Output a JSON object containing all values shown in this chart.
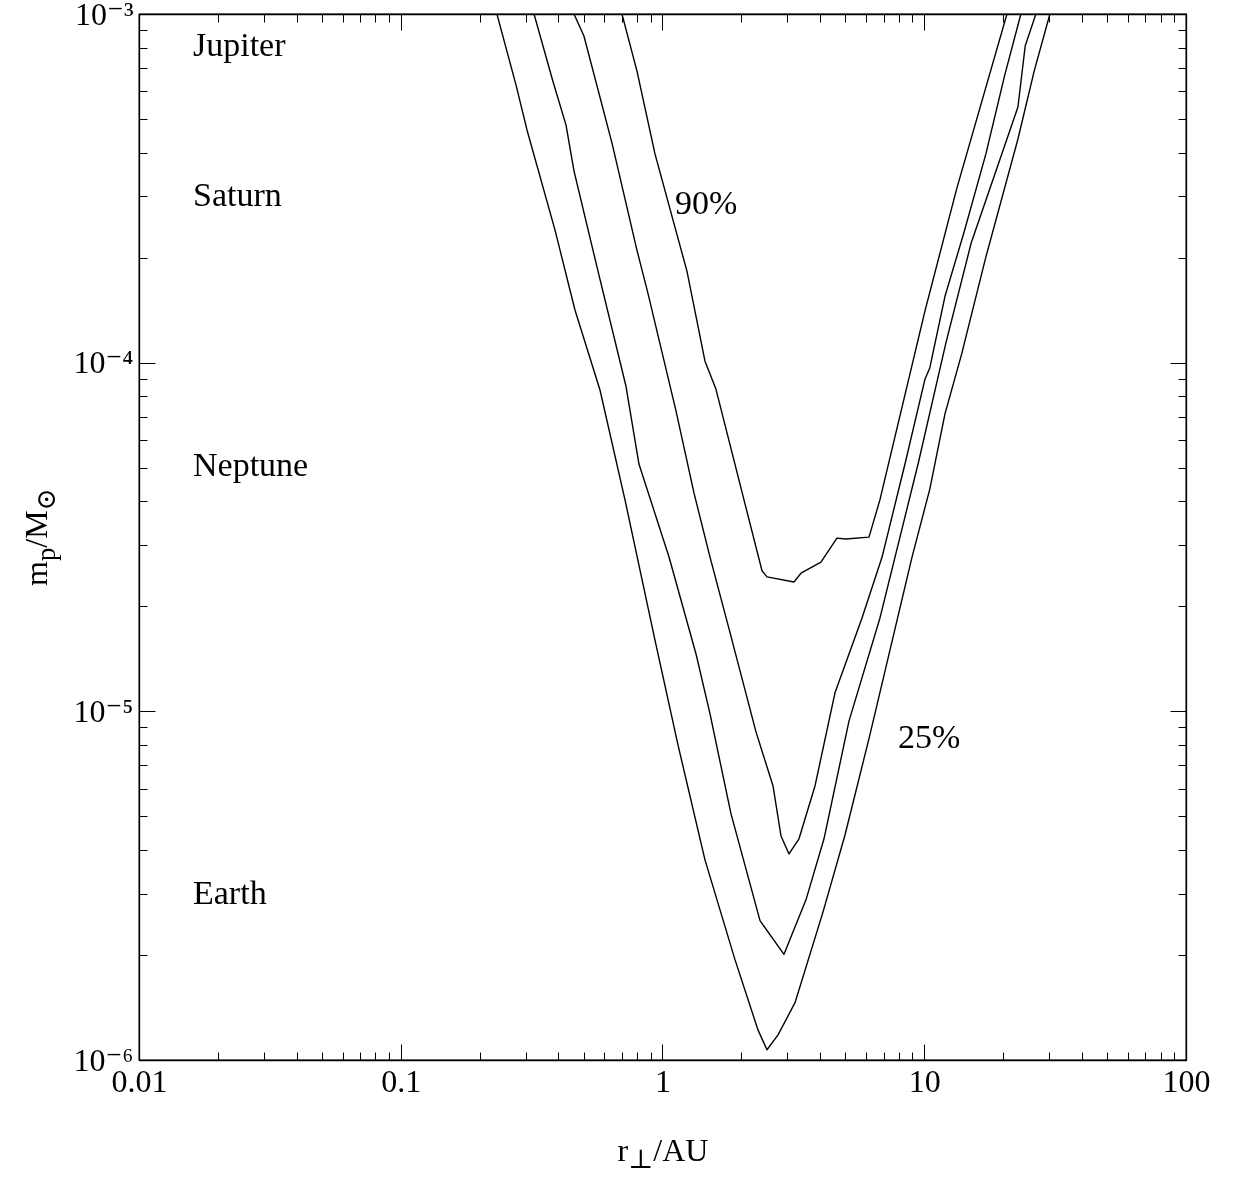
{
  "chart_data": {
    "type": "line",
    "xlabel": "r$_{⊥}$/AU",
    "ylabel": "m$_{p}$/M$_{⊙}$",
    "log": "xy",
    "xlim": [
      0.01,
      100
    ],
    "ylim": [
      1e-06,
      0.001
    ],
    "xticks": [
      0.01,
      {
        "value": 0.02,
        "label": null
      },
      {
        "value": 0.03,
        "label": null
      },
      {
        "value": 0.04,
        "label": null
      },
      {
        "value": 0.05,
        "label": null
      },
      {
        "value": 0.06,
        "label": null
      },
      {
        "value": 0.07,
        "label": null
      },
      {
        "value": 0.08,
        "label": null
      },
      {
        "value": 0.09,
        "label": null
      },
      0.1,
      {
        "value": 0.2,
        "label": null
      },
      {
        "value": 0.3,
        "label": null
      },
      {
        "value": 0.4,
        "label": null
      },
      {
        "value": 0.5,
        "label": null
      },
      {
        "value": 0.6,
        "label": null
      },
      {
        "value": 0.7,
        "label": null
      },
      {
        "value": 0.8,
        "label": null
      },
      {
        "value": 0.9,
        "label": null
      },
      1,
      {
        "value": 2,
        "label": null
      },
      {
        "value": 3,
        "label": null
      },
      {
        "value": 4,
        "label": null
      },
      {
        "value": 5,
        "label": null
      },
      {
        "value": 6,
        "label": null
      },
      {
        "value": 7,
        "label": null
      },
      {
        "value": 8,
        "label": null
      },
      {
        "value": 9,
        "label": null
      },
      10,
      {
        "value": 20,
        "label": null
      },
      {
        "value": 30,
        "label": null
      },
      {
        "value": 40,
        "label": null
      },
      {
        "value": 50,
        "label": null
      },
      {
        "value": 60,
        "label": null
      },
      {
        "value": 70,
        "label": null
      },
      {
        "value": 80,
        "label": null
      },
      {
        "value": 90,
        "label": null
      },
      100
    ],
    "yticks": [
      {
        "value": 1e-06,
        "label": "10⁻⁶"
      },
      {
        "value": 2e-06,
        "label": null
      },
      {
        "value": 3e-06,
        "label": null
      },
      {
        "value": 4e-06,
        "label": null
      },
      {
        "value": 5e-06,
        "label": null
      },
      {
        "value": 6e-06,
        "label": null
      },
      {
        "value": 7e-06,
        "label": null
      },
      {
        "value": 8e-06,
        "label": null
      },
      {
        "value": 9e-06,
        "label": null
      },
      {
        "value": 1e-05,
        "label": "10⁻⁵"
      },
      {
        "value": 2e-05,
        "label": null
      },
      {
        "value": 3e-05,
        "label": null
      },
      {
        "value": 4e-05,
        "label": null
      },
      {
        "value": 5e-05,
        "label": null
      },
      {
        "value": 6e-05,
        "label": null
      },
      {
        "value": 7e-05,
        "label": null
      },
      {
        "value": 8e-05,
        "label": null
      },
      {
        "value": 9e-05,
        "label": null
      },
      {
        "value": 0.0001,
        "label": "10⁻⁴"
      },
      {
        "value": 0.0002,
        "label": null
      },
      {
        "value": 0.0003,
        "label": null
      },
      {
        "value": 0.0004,
        "label": null
      },
      {
        "value": 0.0005,
        "label": null
      },
      {
        "value": 0.0006,
        "label": null
      },
      {
        "value": 0.0007,
        "label": null
      },
      {
        "value": 0.0008,
        "label": null
      },
      {
        "value": 0.0009,
        "label": null
      },
      {
        "value": 0.001,
        "label": "10⁻³"
      }
    ],
    "series": [
      {
        "color": "#000000",
        "x": [
          0.7,
          0.799,
          0.936,
          1.24,
          1.453,
          1.6,
          2.048,
          2.4,
          2.507,
          3.18,
          3.38,
          4.03,
          4.64,
          5.02,
          6.15,
          6.77,
          10.07,
          13.3,
          20.7
        ],
        "values": [
          0.001,
          0.000686,
          0.000397,
          0.000183,
          0.000101,
          8.4e-05,
          4.04e-05,
          2.53e-05,
          2.43e-05,
          2.35e-05,
          2.49e-05,
          2.68e-05,
          3.14e-05,
          3.12e-05,
          3.16e-05,
          4.04e-05,
          0.000141,
          0.000315,
          0.001
        ]
      },
      {
        "color": "#000000",
        "x": [
          0.459,
          0.501,
          0.641,
          0.799,
          0.88,
          1.126,
          1.319,
          1.519,
          1.779,
          2.276,
          2.644,
          2.836,
          3.043,
          3.322,
          3.825,
          4.56,
          5.78,
          6.9,
          8.44,
          10.07,
          10.5,
          12.0,
          14.2,
          17.2,
          20.3,
          23.4
        ],
        "values": [
          0.001,
          0.000865,
          0.000427,
          0.00021,
          0.000158,
          7.27e-05,
          4.23e-05,
          2.77e-05,
          1.77e-05,
          8.73e-06,
          6.11e-06,
          4.39e-06,
          3.9e-06,
          4.31e-06,
          6.11e-06,
          1.13e-05,
          1.85e-05,
          2.77e-05,
          5.12e-05,
          8.98e-05,
          9.66e-05,
          0.000155,
          0.000237,
          0.000397,
          0.000668,
          0.001
        ]
      },
      {
        "color": "#000000",
        "x": [
          0.323,
          0.382,
          0.428,
          0.459,
          0.567,
          0.725,
          0.813,
          1.059,
          1.343,
          1.519,
          1.827,
          2.358,
          2.912,
          3.533,
          4.14,
          5.16,
          6.77,
          9.47,
          12.1,
          15.1,
          22.8,
          24.3,
          26.7
        ],
        "values": [
          0.001,
          0.000638,
          0.00048,
          0.000355,
          0.000183,
          8.57e-05,
          5.12e-05,
          2.77e-05,
          1.46e-05,
          9.83e-06,
          5.08e-06,
          2.51e-06,
          2.01e-06,
          2.88e-06,
          4.31e-06,
          9.39e-06,
          1.85e-05,
          5.12e-05,
          0.000114,
          0.00022,
          0.000541,
          0.000809,
          0.001
        ]
      },
      {
        "color": "#000000",
        "x": [
          0.233,
          0.2756,
          0.3036,
          0.3885,
          0.463,
          0.577,
          0.719,
          0.936,
          1.146,
          1.453,
          1.892,
          2.316,
          2.507,
          2.763,
          3.208,
          4.105,
          4.98,
          6.2,
          7.4,
          8.98,
          10.5,
          12.0,
          13.9,
          17.2,
          22.8,
          26.3,
          30.2
        ],
        "values": [
          0.001,
          0.000626,
          0.000465,
          0.00024,
          0.0001416,
          8.35e-05,
          4.04e-05,
          1.6e-05,
          8.01e-06,
          3.75e-06,
          1.94e-06,
          1.22e-06,
          1.07e-06,
          1.18e-06,
          1.46e-06,
          2.66e-06,
          4.42e-06,
          8.56e-06,
          1.5e-05,
          2.77e-05,
          4.34e-05,
          7.13e-05,
          0.000106,
          0.000201,
          0.000438,
          0.000686,
          0.001
        ]
      }
    ],
    "annotations": [
      "Jupiter",
      "Saturn",
      "Neptune",
      "Earth",
      "90%",
      "25%"
    ]
  }
}
